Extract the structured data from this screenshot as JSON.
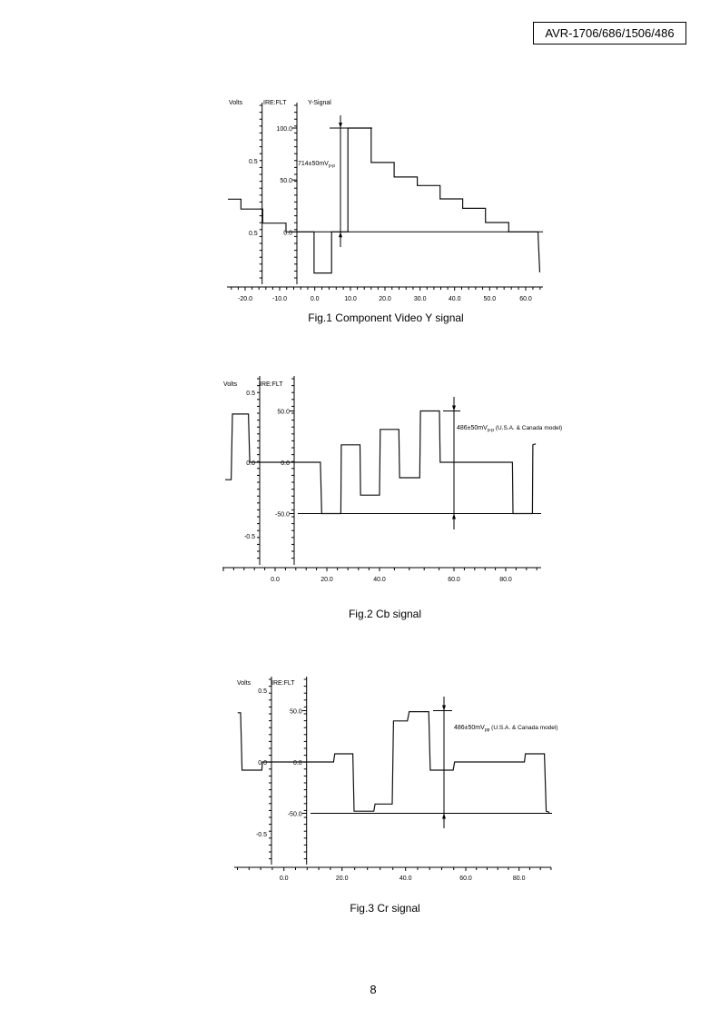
{
  "header": {
    "model": "AVR-1706/686/1506/486"
  },
  "page_number": "8",
  "chart_data": [
    {
      "type": "line",
      "title": "Fig.1 Component Video Y signal",
      "signal_label": "Y-Signal",
      "volts_label": "Volts",
      "ire_label": "IRE:FLT",
      "x_ticks": [
        -20,
        -10,
        0,
        10,
        20,
        30,
        40,
        50,
        60
      ],
      "x_tick_labels": [
        "-20.0",
        "-10.0",
        "0.0",
        "10.0",
        "20.0",
        "30.0",
        "40.0",
        "50.0",
        "60.0"
      ],
      "ire_ticks": [
        100,
        50,
        0
      ],
      "ire_tick_labels": [
        "100.0",
        "50.0",
        "0.0"
      ],
      "volt_tick_labels": [
        "0.5",
        "0.5"
      ],
      "annotation": {
        "main": "714±50mV",
        "sub": "p-p",
        "suffix": ""
      },
      "series": [
        {
          "name": "Y",
          "points": [
            [
              -25,
              31.5
            ],
            [
              -21.2,
              31.5
            ],
            [
              -21.2,
              22
            ],
            [
              -14.9,
              22
            ],
            [
              -14.9,
              8.4
            ],
            [
              -8.2,
              8.4
            ],
            [
              -8.2,
              0
            ],
            [
              -0.2,
              0
            ],
            [
              -0.2,
              -39.6
            ],
            [
              4.7,
              -39.6
            ],
            [
              4.7,
              0
            ],
            [
              9.3,
              0
            ],
            [
              9.3,
              100
            ],
            [
              16,
              100
            ],
            [
              16,
              66.8
            ],
            [
              22.6,
              66.8
            ],
            [
              22.6,
              52.8
            ],
            [
              29.2,
              52.8
            ],
            [
              29.2,
              44.6
            ],
            [
              35.8,
              44.6
            ],
            [
              35.8,
              31.8
            ],
            [
              42.3,
              31.8
            ],
            [
              42.3,
              22.7
            ],
            [
              48.8,
              22.7
            ],
            [
              48.8,
              9
            ],
            [
              55.3,
              9
            ],
            [
              55.3,
              0
            ],
            [
              63.4,
              0
            ],
            [
              63.9,
              -39
            ]
          ]
        }
      ]
    },
    {
      "type": "line",
      "title": "Fig.2 Cb signal",
      "volts_label": "Volts",
      "ire_label": "IRE:FLT",
      "x_ticks": [
        0,
        20,
        40,
        60,
        80
      ],
      "x_tick_labels": [
        "0.0",
        "20.0",
        "40.0",
        "60.0",
        "80.0"
      ],
      "ire_ticks": [
        50,
        0,
        -50
      ],
      "ire_tick_labels": [
        "50.0",
        "0.0",
        "-50.0"
      ],
      "volt_tick_labels": [
        "0.5",
        "0.0",
        "-0.5"
      ],
      "annotation": {
        "main": "486±50mV",
        "sub": "p-p",
        "suffix": " (U.S.A. & Canada model)"
      },
      "series": [
        {
          "name": "Cb",
          "points": [
            [
              -19.3,
              -17
            ],
            [
              -17,
              -17
            ],
            [
              -16.5,
              47
            ],
            [
              -10.3,
              47
            ],
            [
              -9.8,
              0
            ],
            [
              17.5,
              0
            ],
            [
              18,
              -50
            ],
            [
              25.3,
              -50
            ],
            [
              25.5,
              17
            ],
            [
              32.6,
              17
            ],
            [
              32.8,
              -32
            ],
            [
              40,
              -32
            ],
            [
              40.2,
              32
            ],
            [
              45.2,
              32
            ],
            [
              45.4,
              -15
            ],
            [
              50.8,
              -15
            ],
            [
              51,
              50
            ],
            [
              56.1,
              50
            ],
            [
              56.3,
              0
            ],
            [
              82.6,
              0
            ],
            [
              82.8,
              -50
            ],
            [
              90.3,
              -50
            ],
            [
              90.5,
              17
            ],
            [
              91.6,
              18
            ]
          ]
        }
      ]
    },
    {
      "type": "line",
      "title": "Fig.3 Cr signal",
      "volts_label": "Volts",
      "ire_label": "IRE:FLT",
      "x_ticks": [
        0,
        20,
        40,
        60,
        80
      ],
      "x_tick_labels": [
        "0.0",
        "20.0",
        "40.0",
        "60.0",
        "80.0"
      ],
      "ire_ticks": [
        50,
        0,
        -50
      ],
      "ire_tick_labels": [
        "50.0",
        "0.0",
        "-50.0"
      ],
      "volt_tick_labels": [
        "0.5",
        "0.0",
        "-0.5"
      ],
      "annotation": {
        "main": "486±50mV",
        "sub": "pp",
        "suffix": " (U.S.A. & Canada model)"
      },
      "series": [
        {
          "name": "Cr",
          "points": [
            [
              -15.9,
              48
            ],
            [
              -14.9,
              48
            ],
            [
              -14.4,
              -8
            ],
            [
              -7.6,
              -8
            ],
            [
              -7.4,
              0
            ],
            [
              17.1,
              0
            ],
            [
              17.5,
              8
            ],
            [
              23.4,
              8
            ],
            [
              23.8,
              -48
            ],
            [
              30,
              -48
            ],
            [
              30.4,
              -41
            ],
            [
              35.8,
              -41
            ],
            [
              36.2,
              40
            ],
            [
              40.6,
              40
            ],
            [
              41.2,
              49
            ],
            [
              47.7,
              49
            ],
            [
              48.2,
              -8
            ],
            [
              55.8,
              -8
            ],
            [
              56.3,
              0
            ],
            [
              82,
              0
            ],
            [
              82.4,
              8
            ],
            [
              89.5,
              8
            ],
            [
              90.2,
              -48
            ],
            [
              91.4,
              -49
            ]
          ]
        }
      ]
    }
  ]
}
